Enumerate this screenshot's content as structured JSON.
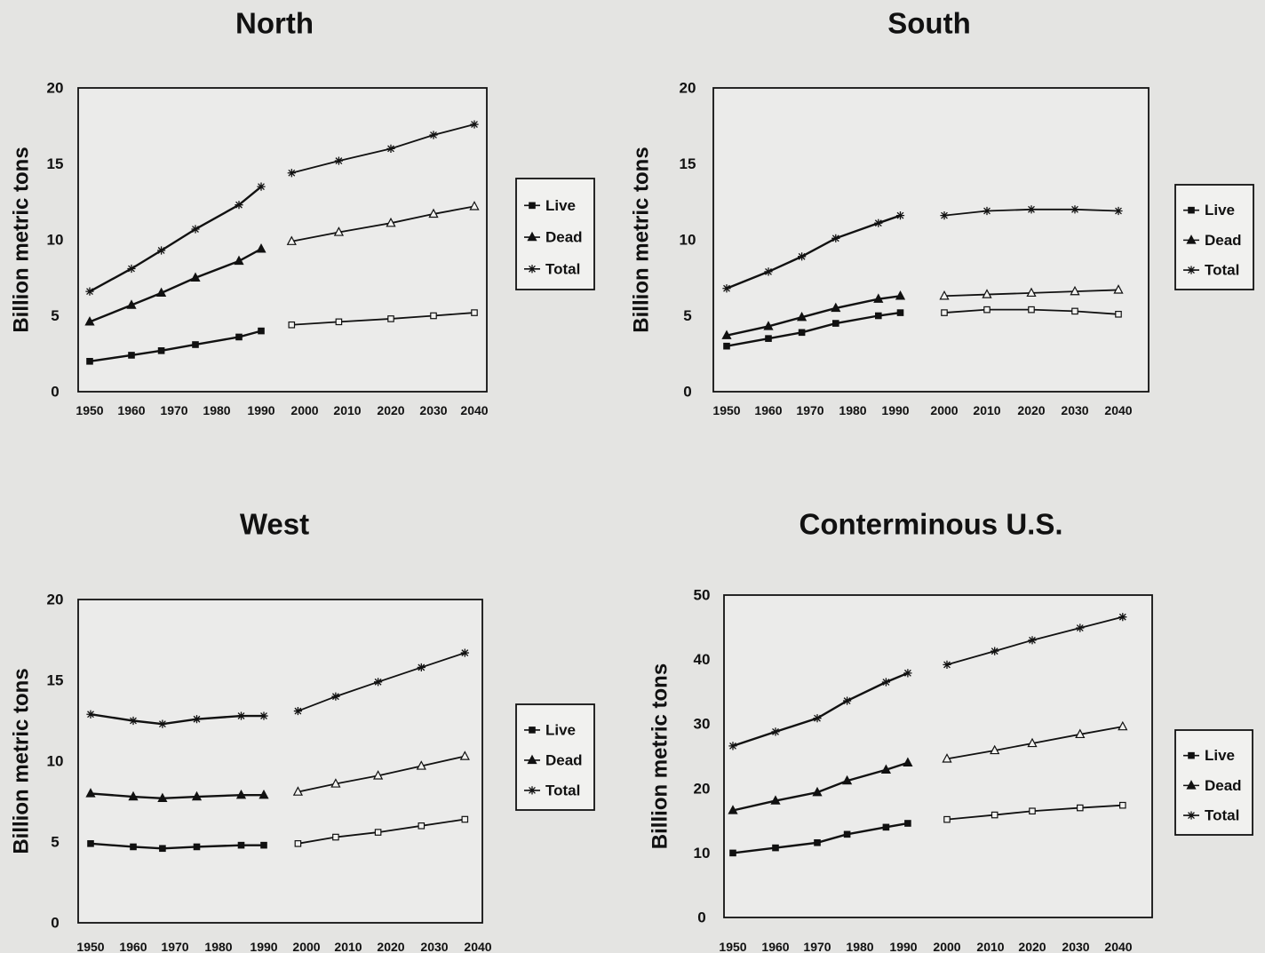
{
  "chart_data": [
    {
      "type": "line",
      "title": "North",
      "ylabel": "Billion metric tons",
      "xlabel": "",
      "x_ticks": [
        "1950",
        "1960",
        "1970",
        "1980",
        "1990",
        "2000",
        "2010",
        "2020",
        "2030",
        "2040"
      ],
      "y_ticks": [
        "0",
        "5",
        "10",
        "15",
        "20"
      ],
      "ylim": [
        0,
        20
      ],
      "legend_position": "right",
      "series": [
        {
          "name": "Live",
          "marker": "square",
          "historical": {
            "x": [
              1950,
              1960,
              1967,
              1975,
              1985,
              1990
            ],
            "y": [
              2.0,
              2.4,
              2.7,
              3.1,
              3.6,
              4.0
            ]
          },
          "projected": {
            "x": [
              1997,
              2008,
              2020,
              2030,
              2040
            ],
            "y": [
              4.4,
              4.6,
              4.8,
              5.0,
              5.2
            ]
          }
        },
        {
          "name": "Dead",
          "marker": "triangle",
          "historical": {
            "x": [
              1950,
              1960,
              1967,
              1975,
              1985,
              1990
            ],
            "y": [
              4.6,
              5.7,
              6.5,
              7.5,
              8.6,
              9.4
            ]
          },
          "projected": {
            "x": [
              1997,
              2008,
              2020,
              2030,
              2040
            ],
            "y": [
              9.9,
              10.5,
              11.1,
              11.7,
              12.2
            ]
          }
        },
        {
          "name": "Total",
          "marker": "asterisk",
          "historical": {
            "x": [
              1950,
              1960,
              1967,
              1975,
              1985,
              1990
            ],
            "y": [
              6.6,
              8.1,
              9.3,
              10.7,
              12.3,
              13.5
            ]
          },
          "projected": {
            "x": [
              1997,
              2008,
              2020,
              2030,
              2040
            ],
            "y": [
              14.4,
              15.2,
              16.0,
              16.9,
              17.6
            ]
          }
        }
      ]
    },
    {
      "type": "line",
      "title": "South",
      "ylabel": "Billion metric tons",
      "xlabel": "",
      "x_ticks": [
        "1950",
        "1960",
        "1970",
        "1980",
        "1990",
        "2000",
        "2010",
        "2020",
        "2030",
        "2040"
      ],
      "y_ticks": [
        "0",
        "5",
        "10",
        "15",
        "20"
      ],
      "ylim": [
        0,
        20
      ],
      "legend_position": "right",
      "series": [
        {
          "name": "Live",
          "marker": "square",
          "historical": {
            "x": [
              1950,
              1960,
              1968,
              1976,
              1986,
              1991
            ],
            "y": [
              3.0,
              3.5,
              3.9,
              4.5,
              5.0,
              5.2
            ]
          },
          "projected": {
            "x": [
              2000,
              2010,
              2020,
              2030,
              2040
            ],
            "y": [
              5.2,
              5.4,
              5.4,
              5.3,
              5.1
            ]
          }
        },
        {
          "name": "Dead",
          "marker": "triangle",
          "historical": {
            "x": [
              1950,
              1960,
              1968,
              1976,
              1986,
              1991
            ],
            "y": [
              3.7,
              4.3,
              4.9,
              5.5,
              6.1,
              6.3
            ]
          },
          "projected": {
            "x": [
              2000,
              2010,
              2020,
              2030,
              2040
            ],
            "y": [
              6.3,
              6.4,
              6.5,
              6.6,
              6.7
            ]
          }
        },
        {
          "name": "Total",
          "marker": "asterisk",
          "historical": {
            "x": [
              1950,
              1960,
              1968,
              1976,
              1986,
              1991
            ],
            "y": [
              6.8,
              7.9,
              8.9,
              10.1,
              11.1,
              11.6
            ]
          },
          "projected": {
            "x": [
              2000,
              2010,
              2020,
              2030,
              2040
            ],
            "y": [
              11.6,
              11.9,
              12.0,
              12.0,
              11.9
            ]
          }
        }
      ]
    },
    {
      "type": "line",
      "title": "West",
      "ylabel": "Billion metric tons",
      "xlabel": "",
      "x_ticks": [
        "1950",
        "1960",
        "1970",
        "1980",
        "1990",
        "2000",
        "2010",
        "2020",
        "2030",
        "2040"
      ],
      "y_ticks": [
        "0",
        "5",
        "10",
        "15",
        "20"
      ],
      "ylim": [
        0,
        20
      ],
      "legend_position": "right",
      "series": [
        {
          "name": "Live",
          "marker": "square",
          "historical": {
            "x": [
              1950,
              1960,
              1967,
              1975,
              1985,
              1990
            ],
            "y": [
              4.9,
              4.7,
              4.6,
              4.7,
              4.8,
              4.8
            ]
          },
          "projected": {
            "x": [
              1998,
              2007,
              2017,
              2027,
              2037
            ],
            "y": [
              4.9,
              5.3,
              5.6,
              6.0,
              6.4
            ]
          }
        },
        {
          "name": "Dead",
          "marker": "triangle",
          "historical": {
            "x": [
              1950,
              1960,
              1967,
              1975,
              1985,
              1990
            ],
            "y": [
              8.0,
              7.8,
              7.7,
              7.8,
              7.9,
              7.9
            ]
          },
          "projected": {
            "x": [
              1998,
              2007,
              2017,
              2027,
              2037
            ],
            "y": [
              8.1,
              8.6,
              9.1,
              9.7,
              10.3
            ]
          }
        },
        {
          "name": "Total",
          "marker": "asterisk",
          "historical": {
            "x": [
              1950,
              1960,
              1967,
              1975,
              1985,
              1990
            ],
            "y": [
              12.9,
              12.5,
              12.3,
              12.6,
              12.8,
              12.8
            ]
          },
          "projected": {
            "x": [
              1998,
              2007,
              2017,
              2027,
              2037
            ],
            "y": [
              13.1,
              14.0,
              14.9,
              15.8,
              16.7
            ]
          }
        }
      ]
    },
    {
      "type": "line",
      "title": "Conterminous U.S.",
      "ylabel": "Billion metric tons",
      "xlabel": "",
      "x_ticks": [
        "1950",
        "1960",
        "1970",
        "1980",
        "1990",
        "2000",
        "2010",
        "2020",
        "2030",
        "2040"
      ],
      "y_ticks": [
        "0",
        "10",
        "20",
        "30",
        "40",
        "50"
      ],
      "ylim": [
        0,
        50
      ],
      "legend_position": "right",
      "series": [
        {
          "name": "Live",
          "marker": "square",
          "historical": {
            "x": [
              1950,
              1960,
              1970,
              1977,
              1986,
              1991
            ],
            "y": [
              10.0,
              10.8,
              11.6,
              12.9,
              14.0,
              14.6
            ]
          },
          "projected": {
            "x": [
              2000,
              2011,
              2020,
              2031,
              2041
            ],
            "y": [
              15.2,
              15.9,
              16.5,
              17.0,
              17.4
            ]
          }
        },
        {
          "name": "Dead",
          "marker": "triangle",
          "historical": {
            "x": [
              1950,
              1960,
              1970,
              1977,
              1986,
              1991
            ],
            "y": [
              16.6,
              18.1,
              19.4,
              21.2,
              22.9,
              24.0
            ]
          },
          "projected": {
            "x": [
              2000,
              2011,
              2020,
              2031,
              2041
            ],
            "y": [
              24.6,
              25.9,
              27.0,
              28.4,
              29.6
            ]
          }
        },
        {
          "name": "Total",
          "marker": "asterisk",
          "historical": {
            "x": [
              1950,
              1960,
              1970,
              1977,
              1986,
              1991
            ],
            "y": [
              26.6,
              28.8,
              30.9,
              33.6,
              36.5,
              37.9
            ]
          },
          "projected": {
            "x": [
              2000,
              2011,
              2020,
              2031,
              2041
            ],
            "y": [
              39.2,
              41.3,
              43.0,
              44.9,
              46.6
            ]
          }
        }
      ]
    }
  ]
}
